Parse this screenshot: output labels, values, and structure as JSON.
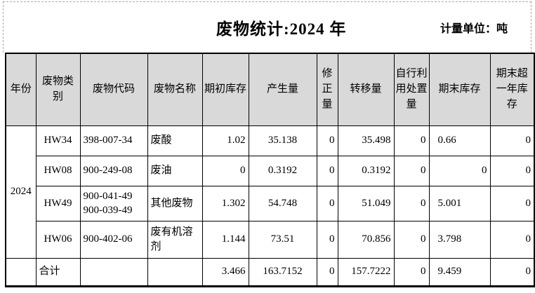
{
  "header": {
    "title": "废物统计:2024 年",
    "unit_label": "计量单位：吨"
  },
  "table": {
    "columns": [
      "年份",
      "废物类别",
      "废物代码",
      "废物名称",
      "期初库存",
      "产生量",
      "修正量",
      "转移量",
      "自行利用处置量",
      "期末库存",
      "期末超一年库存"
    ],
    "year": "2024",
    "rows": [
      [
        "HW34",
        "398-007-34",
        "废酸",
        "1.02",
        "35.138",
        "0",
        "35.498",
        "0",
        "0.66",
        "0"
      ],
      [
        "HW08",
        "900-249-08",
        "废油",
        "0",
        "0.3192",
        "0",
        "0.3192",
        "0",
        "0",
        "0"
      ],
      [
        "HW49",
        "900-041-49\n900-039-49",
        "其他废物",
        "1.302",
        "54.748",
        "0",
        "51.049",
        "0",
        "5.001",
        "0"
      ],
      [
        "HW06",
        "900-402-06",
        "废有机溶剂",
        "1.144",
        "73.51",
        "0",
        "70.856",
        "0",
        "3.798",
        "0"
      ]
    ],
    "total_label": "合计",
    "total_row": [
      "合计",
      "",
      "",
      "3.466",
      "163.7152",
      "0",
      "157.7222",
      "0",
      "9.459",
      "0"
    ]
  },
  "colors": {
    "header_fill": "#d9d9d9",
    "table_border": "#000000",
    "page_background": "#ffffff",
    "dashed_print_border": "#a8a8a8"
  }
}
